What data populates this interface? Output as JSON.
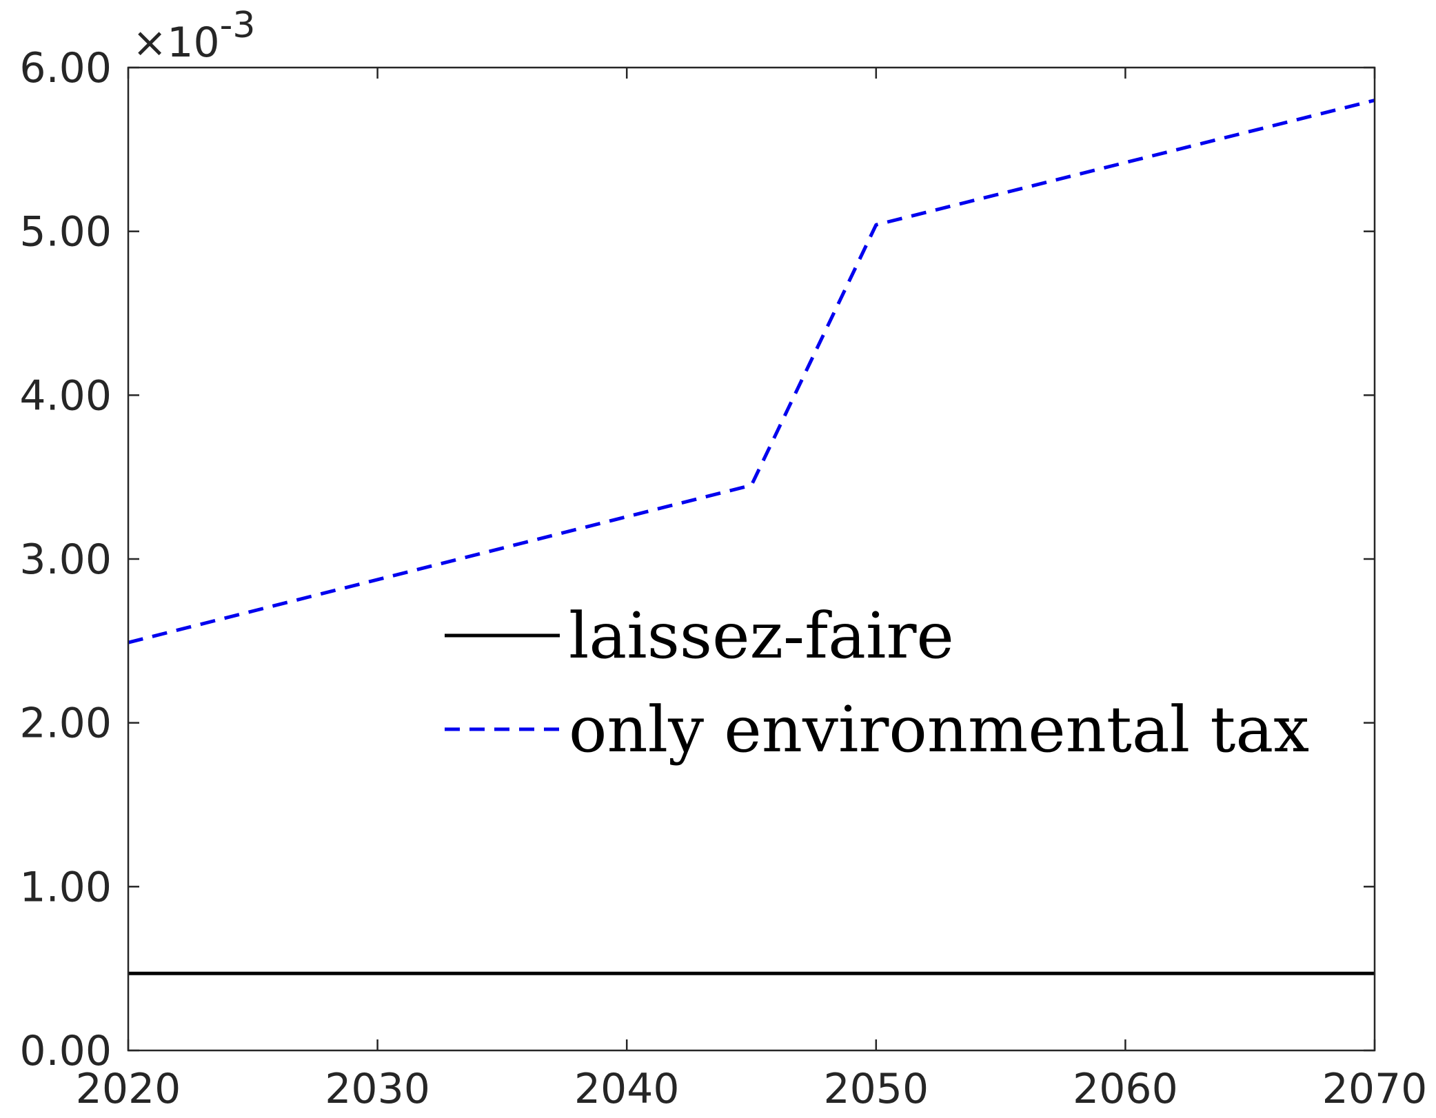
{
  "chart_data": {
    "type": "line",
    "title": "",
    "xlabel": "",
    "ylabel": "",
    "xlim": [
      2020,
      2070
    ],
    "ylim": [
      0,
      6
    ],
    "y_scale_label": {
      "prefix": "×10",
      "exponent": "-3"
    },
    "x_ticks": [
      {
        "value": 2020,
        "label": "2020"
      },
      {
        "value": 2030,
        "label": "2030"
      },
      {
        "value": 2040,
        "label": "2040"
      },
      {
        "value": 2050,
        "label": "2050"
      },
      {
        "value": 2060,
        "label": "2060"
      },
      {
        "value": 2070,
        "label": "2070"
      }
    ],
    "y_ticks": [
      {
        "value": 0,
        "label": "0.00"
      },
      {
        "value": 1,
        "label": "1.00"
      },
      {
        "value": 2,
        "label": "2.00"
      },
      {
        "value": 3,
        "label": "3.00"
      },
      {
        "value": 4,
        "label": "4.00"
      },
      {
        "value": 5,
        "label": "5.00"
      },
      {
        "value": 6,
        "label": "6.00"
      }
    ],
    "grid": false,
    "legend_position": "center",
    "series": [
      {
        "name": "laissez-faire",
        "color": "#000000",
        "style": "solid",
        "x": [
          2020,
          2070
        ],
        "y": [
          0.47,
          0.47
        ]
      },
      {
        "name": "only environmental tax",
        "color": "#0000ee",
        "style": "dashed",
        "x": [
          2020,
          2045,
          2050,
          2070
        ],
        "y": [
          2.49,
          3.45,
          5.04,
          5.8
        ]
      }
    ]
  }
}
